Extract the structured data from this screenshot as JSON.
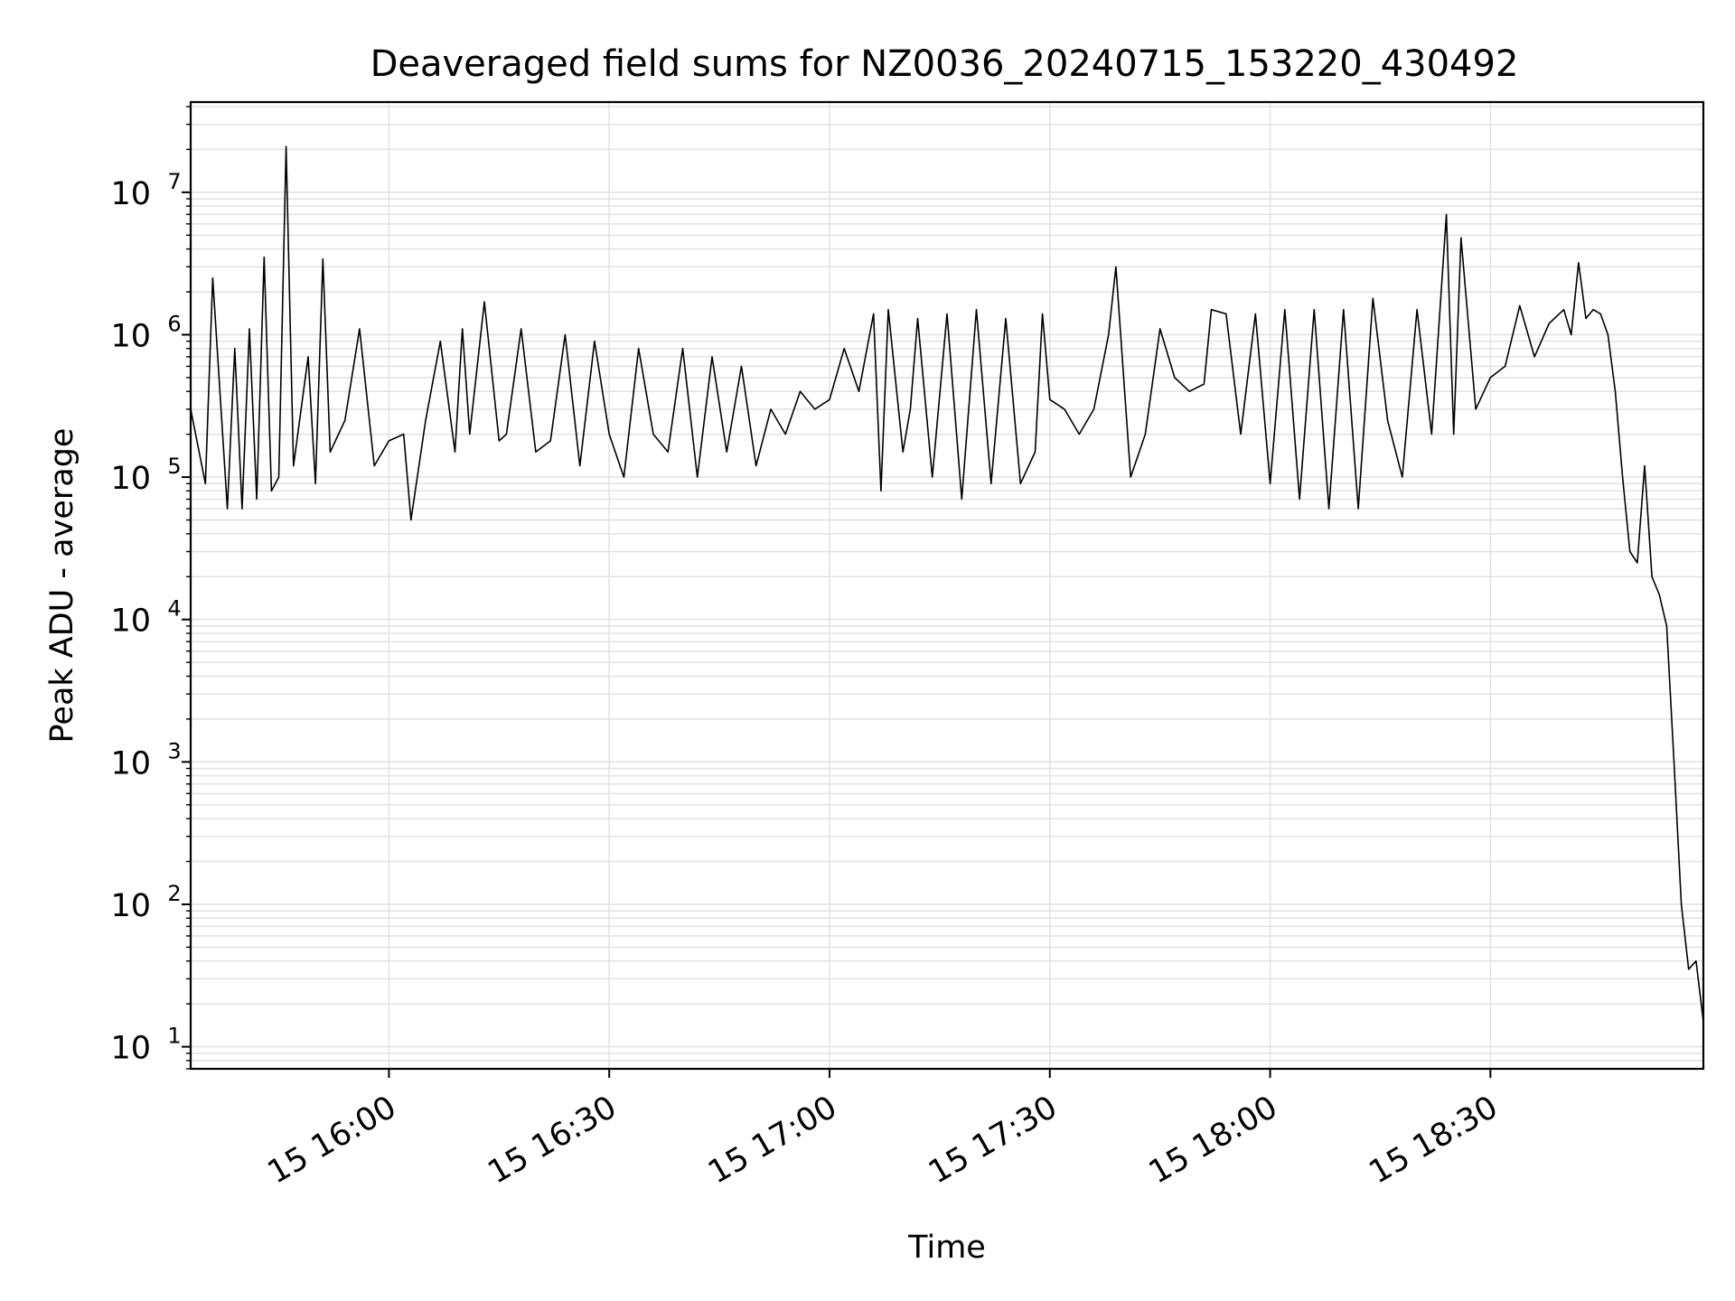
{
  "chart_data": {
    "type": "line",
    "title": "Deaveraged field sums for NZ0036_20240715_153220_430492",
    "xlabel": "Time",
    "ylabel": "Peak ADU - average",
    "yscale": "log",
    "xlim": [
      "2024-07-15 15:33",
      "2024-07-15 18:59"
    ],
    "ylim": [
      7,
      43000000
    ],
    "grid": true,
    "x_ticks": [
      {
        "t": "2024-07-15 16:00",
        "label": "15 16:00"
      },
      {
        "t": "2024-07-15 16:30",
        "label": "15 16:30"
      },
      {
        "t": "2024-07-15 17:00",
        "label": "15 17:00"
      },
      {
        "t": "2024-07-15 17:30",
        "label": "15 17:30"
      },
      {
        "t": "2024-07-15 18:00",
        "label": "15 18:00"
      },
      {
        "t": "2024-07-15 18:30",
        "label": "15 18:30"
      }
    ],
    "y_ticks": [
      {
        "value": 10,
        "exp": "1"
      },
      {
        "value": 100,
        "exp": "2"
      },
      {
        "value": 1000,
        "exp": "3"
      },
      {
        "value": 10000,
        "exp": "4"
      },
      {
        "value": 100000,
        "exp": "5"
      },
      {
        "value": 1000000,
        "exp": "6"
      },
      {
        "value": 10000000,
        "exp": "7"
      }
    ],
    "series": [
      {
        "color": "#000000",
        "x": [
          "2024-07-15 15:33",
          "2024-07-15 15:35",
          "2024-07-15 15:36",
          "2024-07-15 15:38",
          "2024-07-15 15:39",
          "2024-07-15 15:40",
          "2024-07-15 15:41",
          "2024-07-15 15:42",
          "2024-07-15 15:43",
          "2024-07-15 15:44",
          "2024-07-15 15:45",
          "2024-07-15 15:46",
          "2024-07-15 15:47",
          "2024-07-15 15:49",
          "2024-07-15 15:50",
          "2024-07-15 15:51",
          "2024-07-15 15:52",
          "2024-07-15 15:54",
          "2024-07-15 15:56",
          "2024-07-15 15:58",
          "2024-07-15 16:00",
          "2024-07-15 16:02",
          "2024-07-15 16:03",
          "2024-07-15 16:05",
          "2024-07-15 16:07",
          "2024-07-15 16:09",
          "2024-07-15 16:10",
          "2024-07-15 16:11",
          "2024-07-15 16:13",
          "2024-07-15 16:15",
          "2024-07-15 16:16",
          "2024-07-15 16:18",
          "2024-07-15 16:20",
          "2024-07-15 16:22",
          "2024-07-15 16:24",
          "2024-07-15 16:26",
          "2024-07-15 16:28",
          "2024-07-15 16:30",
          "2024-07-15 16:32",
          "2024-07-15 16:34",
          "2024-07-15 16:36",
          "2024-07-15 16:38",
          "2024-07-15 16:40",
          "2024-07-15 16:42",
          "2024-07-15 16:44",
          "2024-07-15 16:46",
          "2024-07-15 16:48",
          "2024-07-15 16:50",
          "2024-07-15 16:52",
          "2024-07-15 16:54",
          "2024-07-15 16:56",
          "2024-07-15 16:58",
          "2024-07-15 17:00",
          "2024-07-15 17:02",
          "2024-07-15 17:04",
          "2024-07-15 17:06",
          "2024-07-15 17:07",
          "2024-07-15 17:08",
          "2024-07-15 17:10",
          "2024-07-15 17:11",
          "2024-07-15 17:12",
          "2024-07-15 17:14",
          "2024-07-15 17:16",
          "2024-07-15 17:18",
          "2024-07-15 17:20",
          "2024-07-15 17:22",
          "2024-07-15 17:24",
          "2024-07-15 17:26",
          "2024-07-15 17:28",
          "2024-07-15 17:29",
          "2024-07-15 17:30",
          "2024-07-15 17:32",
          "2024-07-15 17:34",
          "2024-07-15 17:36",
          "2024-07-15 17:38",
          "2024-07-15 17:39",
          "2024-07-15 17:41",
          "2024-07-15 17:43",
          "2024-07-15 17:45",
          "2024-07-15 17:47",
          "2024-07-15 17:49",
          "2024-07-15 17:51",
          "2024-07-15 17:52",
          "2024-07-15 17:54",
          "2024-07-15 17:56",
          "2024-07-15 17:58",
          "2024-07-15 18:00",
          "2024-07-15 18:02",
          "2024-07-15 18:04",
          "2024-07-15 18:06",
          "2024-07-15 18:08",
          "2024-07-15 18:10",
          "2024-07-15 18:12",
          "2024-07-15 18:14",
          "2024-07-15 18:16",
          "2024-07-15 18:18",
          "2024-07-15 18:20",
          "2024-07-15 18:22",
          "2024-07-15 18:24",
          "2024-07-15 18:25",
          "2024-07-15 18:26",
          "2024-07-15 18:28",
          "2024-07-15 18:30",
          "2024-07-15 18:32",
          "2024-07-15 18:34",
          "2024-07-15 18:36",
          "2024-07-15 18:38",
          "2024-07-15 18:40",
          "2024-07-15 18:41",
          "2024-07-15 18:42",
          "2024-07-15 18:43",
          "2024-07-15 18:44",
          "2024-07-15 18:45",
          "2024-07-15 18:46",
          "2024-07-15 18:47",
          "2024-07-15 18:48",
          "2024-07-15 18:49",
          "2024-07-15 18:50",
          "2024-07-15 18:51",
          "2024-07-15 18:52",
          "2024-07-15 18:53",
          "2024-07-15 18:54",
          "2024-07-15 18:55",
          "2024-07-15 18:56",
          "2024-07-15 18:57",
          "2024-07-15 18:58",
          "2024-07-15 18:59"
        ],
        "y": [
          300000,
          90000,
          2500000,
          60000,
          800000,
          60000,
          1100000,
          70000,
          3500000,
          80000,
          100000,
          21000000,
          120000,
          700000,
          90000,
          3400000,
          150000,
          250000,
          1100000,
          120000,
          180000,
          200000,
          50000,
          250000,
          900000,
          150000,
          1100000,
          200000,
          1700000,
          180000,
          200000,
          1100000,
          150000,
          180000,
          1000000,
          120000,
          900000,
          200000,
          100000,
          800000,
          200000,
          150000,
          800000,
          100000,
          700000,
          150000,
          600000,
          120000,
          300000,
          200000,
          400000,
          300000,
          350000,
          800000,
          400000,
          1400000,
          80000,
          1500000,
          150000,
          300000,
          1300000,
          100000,
          1400000,
          70000,
          1500000,
          90000,
          1300000,
          90000,
          150000,
          1400000,
          350000,
          300000,
          200000,
          300000,
          1000000,
          3000000,
          100000,
          200000,
          1100000,
          500000,
          400000,
          450000,
          1500000,
          1400000,
          200000,
          1400000,
          90000,
          1500000,
          70000,
          1500000,
          60000,
          1500000,
          60000,
          1800000,
          250000,
          100000,
          1500000,
          200000,
          7000000,
          200000,
          4800000,
          300000,
          500000,
          600000,
          1600000,
          700000,
          1200000,
          1500000,
          1000000,
          3200000,
          1300000,
          1500000,
          1400000,
          1000000,
          400000,
          100000,
          30000,
          25000,
          120000,
          20000,
          15000,
          9000,
          1000,
          100,
          35,
          40,
          15
        ]
      }
    ]
  }
}
